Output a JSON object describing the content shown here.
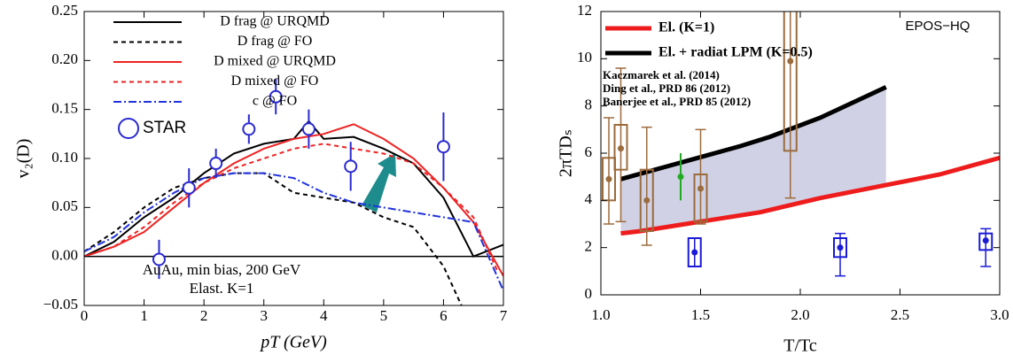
{
  "chart_data": [
    {
      "type": "line",
      "xlabel": "pT (GeV)",
      "ylabel": "v₂(D)",
      "xlim": [
        0,
        7
      ],
      "ylim": [
        -0.05,
        0.25
      ],
      "xticks": [
        0,
        1,
        2,
        3,
        4,
        5,
        6,
        7
      ],
      "yticks": [
        {
          "value": -0.05,
          "label": "−0.05"
        },
        {
          "value": 0,
          "label": "0.00"
        },
        {
          "value": 0.05,
          "label": "0.05"
        },
        {
          "value": 0.1,
          "label": "0.10"
        },
        {
          "value": 0.15,
          "label": "0.15"
        },
        {
          "value": 0.2,
          "label": "0.20"
        },
        {
          "value": 0.25,
          "label": "0.25"
        }
      ],
      "zero_line": true,
      "annotations": [
        "AuAu, min bias, 200 GeV",
        "Elast. K=1"
      ],
      "series": [
        {
          "name": "D frag @ URQMD",
          "color": "#000000",
          "mark": "line",
          "style": "solid",
          "x": [
            0,
            0.5,
            1,
            1.5,
            2,
            2.5,
            3,
            3.5,
            3.75,
            4,
            4.5,
            5,
            5.5,
            6,
            6.5,
            7
          ],
          "values": [
            0,
            0.015,
            0.04,
            0.06,
            0.085,
            0.105,
            0.115,
            0.12,
            0.138,
            0.12,
            0.122,
            0.11,
            0.095,
            0.06,
            0,
            0.012
          ]
        },
        {
          "name": "D frag @ FO",
          "color": "#000000",
          "mark": "line",
          "style": "dashed",
          "x": [
            0,
            0.5,
            1,
            1.5,
            2,
            2.5,
            3,
            3.5,
            4,
            4.5,
            5,
            5.5,
            6,
            6.3
          ],
          "values": [
            0.005,
            0.025,
            0.05,
            0.07,
            0.08,
            0.085,
            0.085,
            0.065,
            0.06,
            0.055,
            0.04,
            0.03,
            -0.01,
            -0.05
          ]
        },
        {
          "name": "D mixed @ URQMD",
          "color": "#ee2222",
          "mark": "line",
          "style": "solid",
          "x": [
            0,
            0.5,
            1,
            1.5,
            2,
            2.5,
            3,
            3.5,
            4,
            4.5,
            5,
            5.5,
            6,
            6.5,
            7
          ],
          "values": [
            0,
            0.01,
            0.025,
            0.05,
            0.075,
            0.095,
            0.11,
            0.12,
            0.125,
            0.135,
            0.12,
            0.1,
            0.07,
            0.035,
            -0.02
          ]
        },
        {
          "name": "D mixed @ FO",
          "color": "#ee2222",
          "mark": "line",
          "style": "dashed",
          "x": [
            0,
            0.5,
            1,
            1.5,
            2,
            2.5,
            3,
            3.5,
            4,
            4.5,
            5,
            5.5,
            6,
            6.5,
            6.9
          ],
          "values": [
            0,
            0.01,
            0.03,
            0.055,
            0.075,
            0.09,
            0.1,
            0.11,
            0.115,
            0.11,
            0.105,
            0.095,
            0.07,
            0.04,
            -0.015
          ]
        },
        {
          "name": "c @ FO",
          "color": "#2233dd",
          "mark": "line",
          "style": "dashdot",
          "x": [
            0,
            0.5,
            1,
            1.5,
            2,
            2.5,
            3,
            3.5,
            4,
            4.5,
            5,
            5.5,
            6,
            6.5,
            7
          ],
          "values": [
            0.005,
            0.02,
            0.045,
            0.065,
            0.08,
            0.085,
            0.085,
            0.08,
            0.065,
            0.055,
            0.05,
            0.045,
            0.04,
            0.035,
            -0.035
          ]
        },
        {
          "name": "STAR",
          "color": "#2a2ad0",
          "mark": "points",
          "x": [
            1.25,
            1.75,
            2.2,
            2.75,
            3.2,
            3.75,
            4.45,
            6.0
          ],
          "values": [
            -0.003,
            0.07,
            0.095,
            0.13,
            0.163,
            0.13,
            0.092,
            0.112
          ],
          "errors": [
            0.02,
            0.02,
            0.015,
            0.015,
            0.018,
            0.02,
            0.025,
            0.035
          ]
        }
      ]
    },
    {
      "type": "line",
      "xlabel": "T/Tc",
      "ylabel": "2πTDₛ",
      "xlim": [
        1,
        3
      ],
      "ylim": [
        0,
        12
      ],
      "xticks": [
        {
          "value": 1,
          "label": "1.0"
        },
        {
          "value": 1.5,
          "label": "1.5"
        },
        {
          "value": 2,
          "label": "2.0"
        },
        {
          "value": 2.5,
          "label": "2.5"
        },
        {
          "value": 3,
          "label": "3.0"
        }
      ],
      "yticks": [
        0,
        2,
        4,
        6,
        8,
        10,
        12
      ],
      "fill_between_lines": "#d0d1e4",
      "annotations": [
        "EPOS−HQ"
      ],
      "series": [
        {
          "name": "El. (K=1)",
          "color": "#ee1c1c",
          "mark": "line",
          "style": "solid",
          "x": [
            1.1,
            1.2,
            1.5,
            1.8,
            2.1,
            2.4,
            2.7,
            3.0
          ],
          "values": [
            2.6,
            2.7,
            3.1,
            3.5,
            4.1,
            4.6,
            5.1,
            5.8
          ]
        },
        {
          "name": "El. + radiat LPM (K=0.5)",
          "color": "#000000",
          "mark": "line",
          "style": "solid",
          "x": [
            1.1,
            1.4,
            1.7,
            1.85,
            2.1,
            2.43
          ],
          "values": [
            4.9,
            5.6,
            6.3,
            6.7,
            7.5,
            8.8
          ]
        },
        {
          "name": "Kaczmarek et al. (2014)",
          "color": "#22aa22",
          "mark": "points",
          "x": [
            1.4
          ],
          "values": [
            5.0
          ],
          "errors": [
            1.0
          ]
        },
        {
          "name": "Ding et al., PRD 86 (2012)",
          "color": "#1a1ad8",
          "mark": "box",
          "x": [
            1.47,
            2.2,
            2.93
          ],
          "values": [
            1.8,
            2.0,
            2.3
          ],
          "box_low": [
            1.2,
            1.6,
            1.9
          ],
          "box_high": [
            2.4,
            2.4,
            2.6
          ],
          "whisker_low": [
            1.2,
            0.8,
            1.2
          ],
          "whisker_high": [
            2.4,
            2.6,
            2.8
          ]
        },
        {
          "name": "Banerjee et al., PRD 85 (2012)",
          "color": "#9c6b3c",
          "mark": "box",
          "x": [
            1.04,
            1.1,
            1.23,
            1.5,
            1.95
          ],
          "values": [
            4.9,
            6.2,
            4.0,
            4.5,
            9.9
          ],
          "box_low": [
            4.0,
            5.3,
            2.7,
            3.1,
            6.1
          ],
          "box_high": [
            5.8,
            7.2,
            5.3,
            5.1,
            13
          ],
          "whisker_low": [
            3.0,
            3.1,
            2.1,
            3.0,
            4.1
          ],
          "whisker_high": [
            7.5,
            9.6,
            7.1,
            7.0,
            13
          ]
        }
      ]
    }
  ]
}
